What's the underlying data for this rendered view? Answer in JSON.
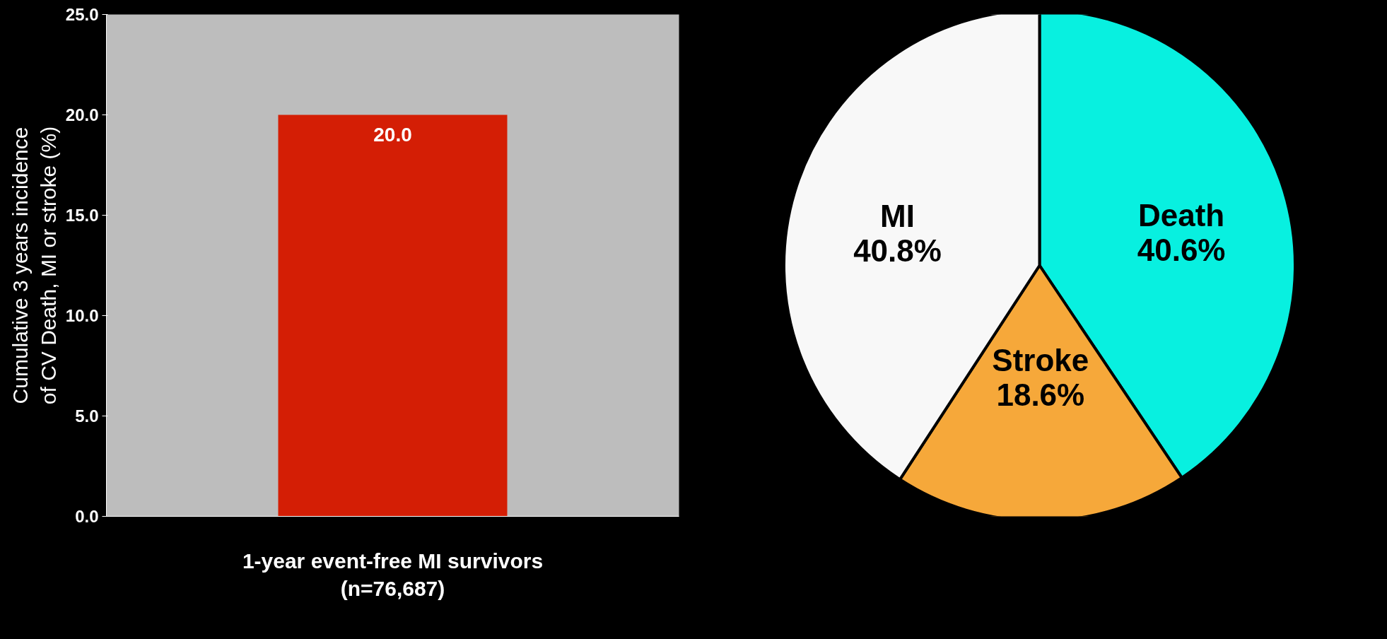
{
  "chart_data": [
    {
      "type": "bar",
      "categories": [
        null
      ],
      "values": [
        20.0
      ],
      "color": "#d41e05",
      "value_labels": [
        "20.0"
      ],
      "xlabel": "1-year event-free MI survivors\n(n=76,687)",
      "ylabel": "Cumulative 3 years incidence\nof CV Death, MI or stroke (%)",
      "ylim": [
        0,
        25
      ],
      "yticks": [
        {
          "value": 0,
          "label": "0.0"
        },
        {
          "value": 5,
          "label": "5.0"
        },
        {
          "value": 10,
          "label": "10.0"
        },
        {
          "value": 15,
          "label": "15.0"
        },
        {
          "value": 20,
          "label": "20.0"
        },
        {
          "value": 25,
          "label": "25.0"
        }
      ],
      "grid": false
    },
    {
      "type": "pie",
      "categories": [
        "Death",
        "Stroke",
        "MI"
      ],
      "values": [
        40.6,
        18.6,
        40.8
      ],
      "colors": [
        "#08f0e0",
        "#f6a83a",
        "#f8f8f8"
      ],
      "value_labels": [
        "40.6%",
        "18.6%",
        "40.8%"
      ]
    }
  ]
}
